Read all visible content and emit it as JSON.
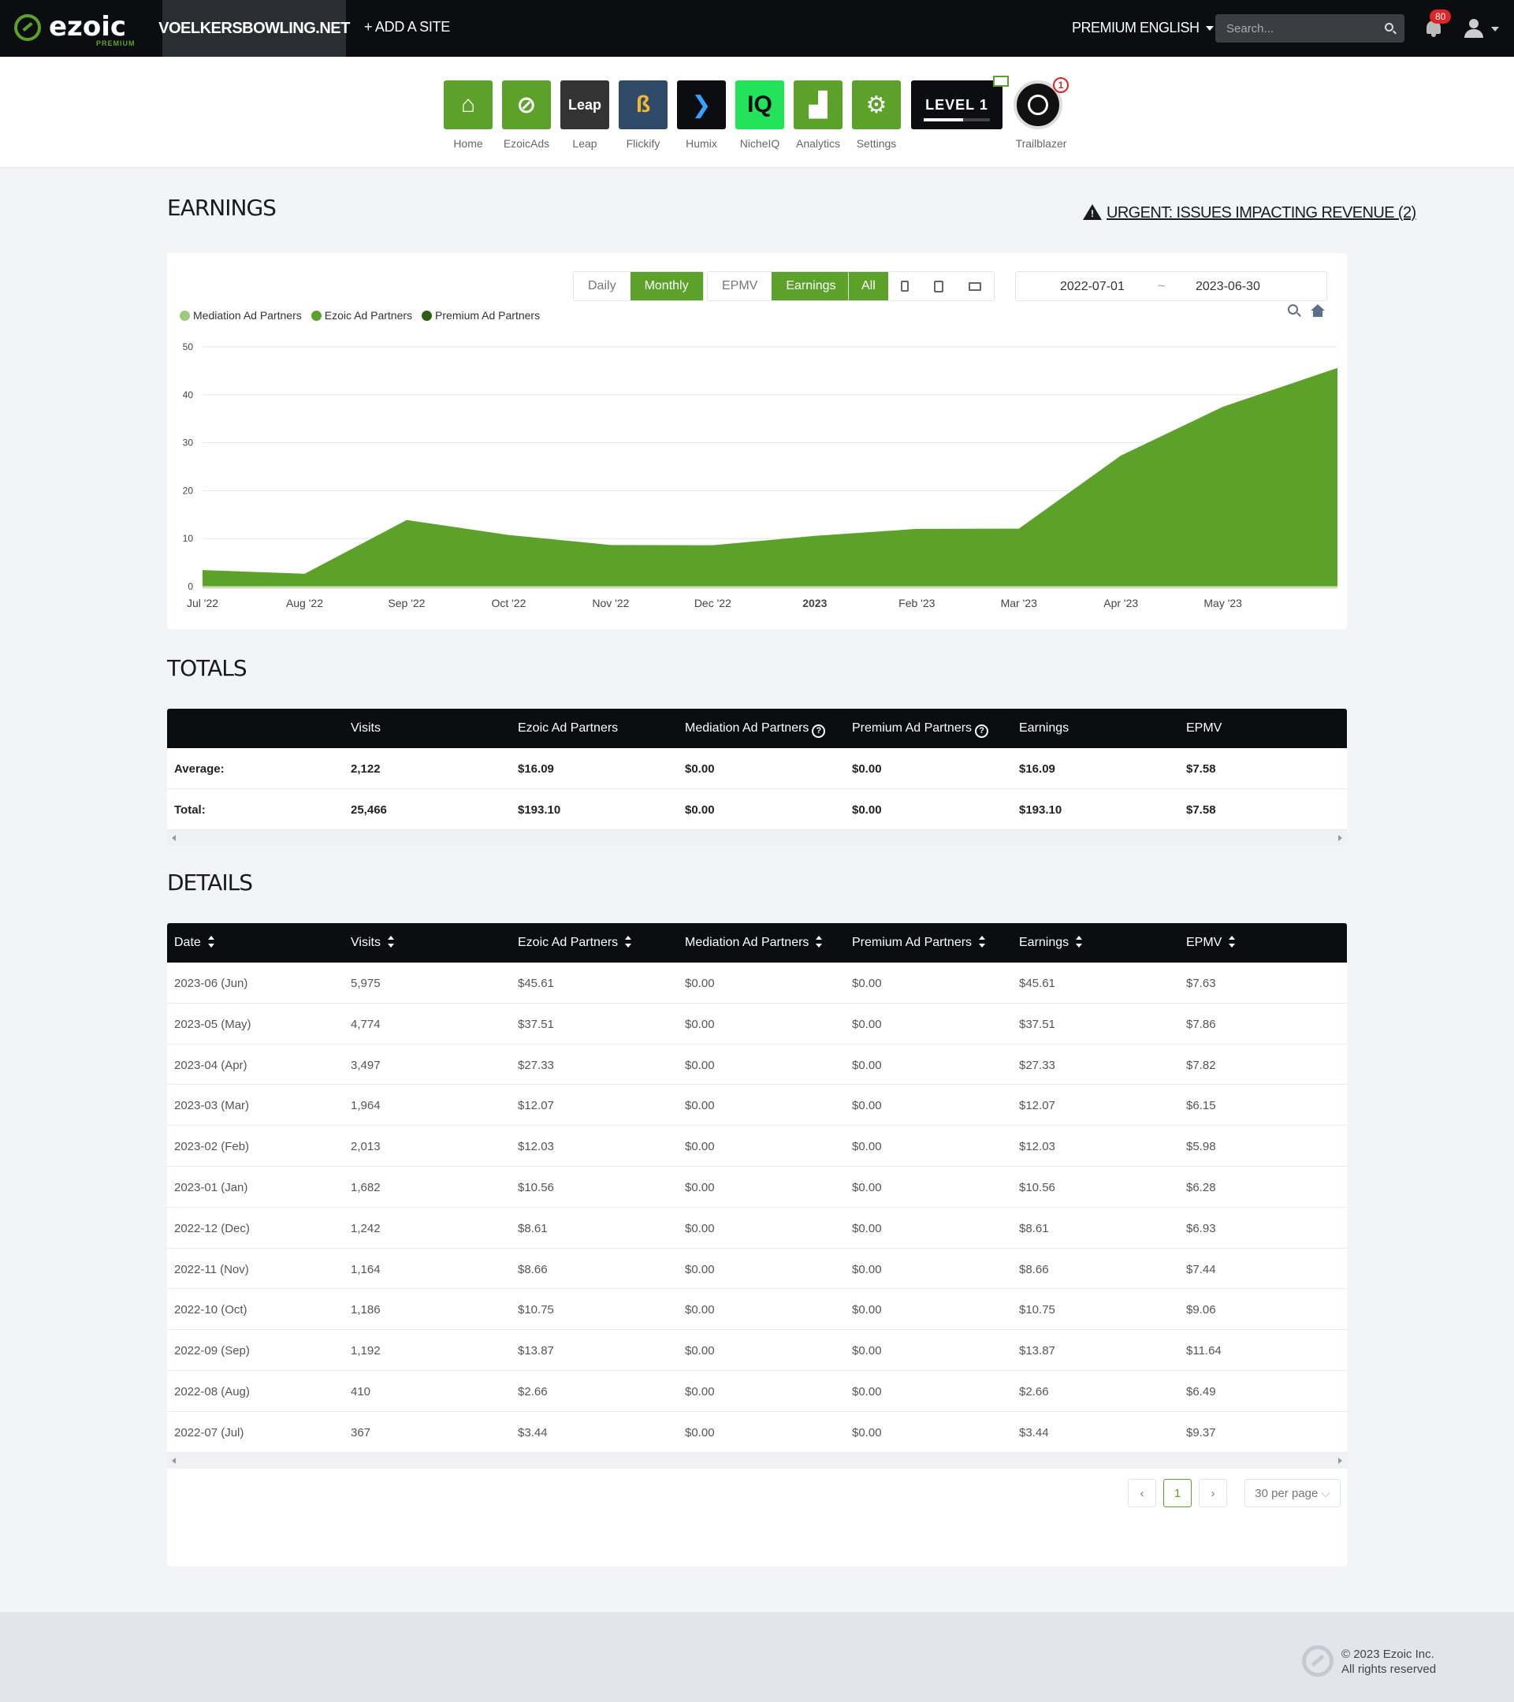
{
  "nav": {
    "logo": "ezoic",
    "logo_sub": "PREMIUM",
    "site": "VOELKERSBOWLING.NET",
    "add_site": "+ ADD A SITE",
    "premium": "PREMIUM",
    "language": "ENGLISH",
    "search_placeholder": "Search...",
    "notifications": "80"
  },
  "apps": [
    {
      "label": "Home",
      "icon": "home-icon",
      "color": "#5ca22a"
    },
    {
      "label": "EzoicAds",
      "icon": "ezoicads-icon",
      "color": "#5ca22a"
    },
    {
      "label": "Leap",
      "icon": "leap-icon",
      "color": "#333333",
      "tile_text": "Leap"
    },
    {
      "label": "Flickify",
      "icon": "flickify-icon",
      "color": "#2e4a66"
    },
    {
      "label": "Humix",
      "icon": "humix-icon",
      "color": "#0b0d10"
    },
    {
      "label": "NicheIQ",
      "icon": "nicheiq-icon",
      "color": "#22e35a",
      "tile_text": "IQ"
    },
    {
      "label": "Analytics",
      "icon": "analytics-icon",
      "color": "#5ca22a"
    },
    {
      "label": "Settings",
      "icon": "settings-icon",
      "color": "#5ca22a"
    }
  ],
  "level": {
    "text": "LEVEL 1",
    "progress": 0.6
  },
  "trailblazer": {
    "label": "Trailblazer",
    "badge": "1"
  },
  "earnings": {
    "title": "EARNINGS",
    "urgent": "URGENT: ISSUES IMPACTING REVENUE (2)",
    "period_buttons": [
      "Daily",
      "Monthly"
    ],
    "metric_buttons": [
      "EPMV",
      "Earnings"
    ],
    "device_all": "All",
    "date_from": "2022-07-01",
    "date_sep": "~",
    "date_to": "2023-06-30"
  },
  "chart_data": {
    "type": "area",
    "legend": [
      "Mediation Ad Partners",
      "Ezoic Ad Partners",
      "Premium Ad Partners"
    ],
    "legend_colors": [
      "#9ccc7a",
      "#5ca22a",
      "#2f5e16"
    ],
    "x_labels": [
      "Jul '22",
      "Aug '22",
      "Sep '22",
      "Oct '22",
      "Nov '22",
      "Dec '22",
      "2023",
      "Feb '23",
      "Mar '23",
      "Apr '23",
      "May '23"
    ],
    "y_ticks": [
      "0",
      "10",
      "20",
      "30",
      "40",
      "50"
    ],
    "ylim": [
      0,
      50
    ],
    "series": [
      {
        "name": "Ezoic Ad Partners",
        "color": "#5ca22a",
        "values": [
          3.44,
          2.66,
          13.87,
          10.75,
          8.66,
          8.61,
          10.56,
          12.03,
          12.07,
          27.33,
          37.51,
          45.61
        ]
      }
    ]
  },
  "totals": {
    "title": "TOTALS",
    "headers": [
      "",
      "Visits",
      "Ezoic Ad Partners",
      "Mediation Ad Partners",
      "Premium Ad Partners",
      "Earnings",
      "EPMV"
    ],
    "rows": [
      [
        "Average:",
        "2,122",
        "$16.09",
        "$0.00",
        "$0.00",
        "$16.09",
        "$7.58"
      ],
      [
        "Total:",
        "25,466",
        "$193.10",
        "$0.00",
        "$0.00",
        "$193.10",
        "$7.58"
      ]
    ]
  },
  "details": {
    "title": "DETAILS",
    "headers": [
      "Date",
      "Visits",
      "Ezoic Ad Partners",
      "Mediation Ad Partners",
      "Premium Ad Partners",
      "Earnings",
      "EPMV"
    ],
    "rows": [
      [
        "2023-06 (Jun)",
        "5,975",
        "$45.61",
        "$0.00",
        "$0.00",
        "$45.61",
        "$7.63"
      ],
      [
        "2023-05 (May)",
        "4,774",
        "$37.51",
        "$0.00",
        "$0.00",
        "$37.51",
        "$7.86"
      ],
      [
        "2023-04 (Apr)",
        "3,497",
        "$27.33",
        "$0.00",
        "$0.00",
        "$27.33",
        "$7.82"
      ],
      [
        "2023-03 (Mar)",
        "1,964",
        "$12.07",
        "$0.00",
        "$0.00",
        "$12.07",
        "$6.15"
      ],
      [
        "2023-02 (Feb)",
        "2,013",
        "$12.03",
        "$0.00",
        "$0.00",
        "$12.03",
        "$5.98"
      ],
      [
        "2023-01 (Jan)",
        "1,682",
        "$10.56",
        "$0.00",
        "$0.00",
        "$10.56",
        "$6.28"
      ],
      [
        "2022-12 (Dec)",
        "1,242",
        "$8.61",
        "$0.00",
        "$0.00",
        "$8.61",
        "$6.93"
      ],
      [
        "2022-11 (Nov)",
        "1,164",
        "$8.66",
        "$0.00",
        "$0.00",
        "$8.66",
        "$7.44"
      ],
      [
        "2022-10 (Oct)",
        "1,186",
        "$10.75",
        "$0.00",
        "$0.00",
        "$10.75",
        "$9.06"
      ],
      [
        "2022-09 (Sep)",
        "1,192",
        "$13.87",
        "$0.00",
        "$0.00",
        "$13.87",
        "$11.64"
      ],
      [
        "2022-08 (Aug)",
        "410",
        "$2.66",
        "$0.00",
        "$0.00",
        "$2.66",
        "$6.49"
      ],
      [
        "2022-07 (Jul)",
        "367",
        "$3.44",
        "$0.00",
        "$0.00",
        "$3.44",
        "$9.37"
      ]
    ],
    "page": "1",
    "per_page": "30 per page"
  },
  "footer": {
    "copyright": "© 2023 Ezoic Inc.",
    "rights": "All rights reserved"
  }
}
